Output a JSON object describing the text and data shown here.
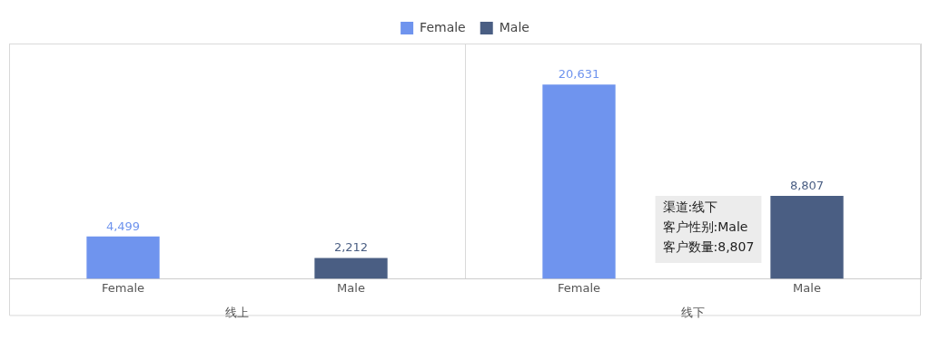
{
  "chart_data": {
    "type": "bar",
    "categories": [
      "线上",
      "线下"
    ],
    "series": [
      {
        "name": "Female",
        "color": "#6f94ee",
        "values": [
          4499,
          20631
        ],
        "value_labels": [
          "4,499",
          "20,631"
        ]
      },
      {
        "name": "Male",
        "color": "#4a5e83",
        "values": [
          2212,
          8807
        ],
        "value_labels": [
          "2,212",
          "8,807"
        ]
      }
    ],
    "legend": "top",
    "grid": "x",
    "annotations": [
      "渠道:线下",
      "客户性别:Male",
      "客户数量:8,807"
    ]
  }
}
